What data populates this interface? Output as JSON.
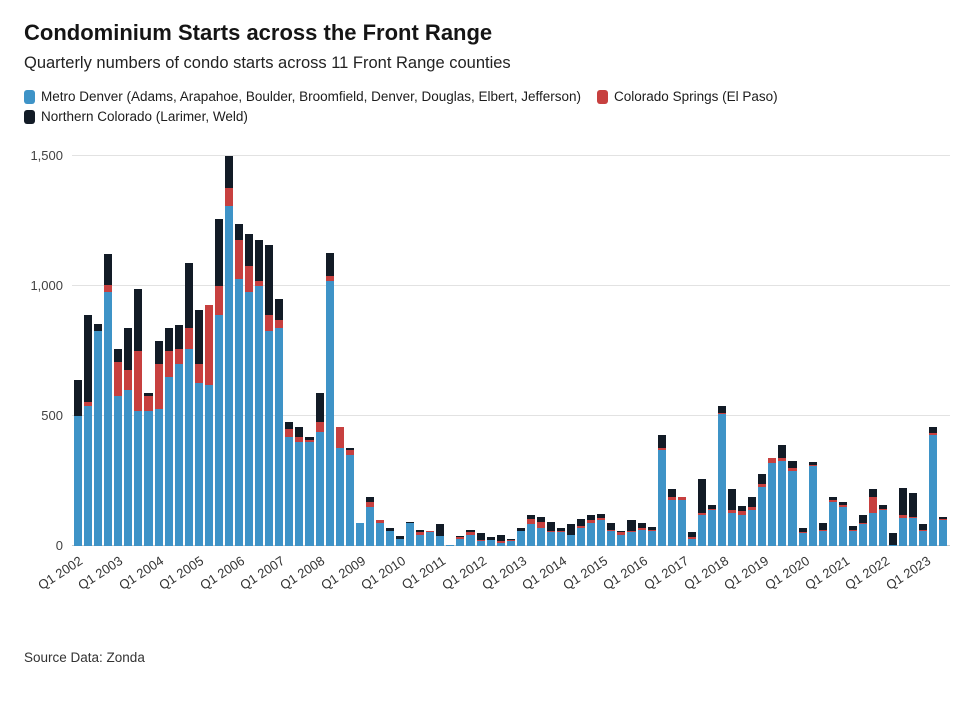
{
  "header": {
    "title": "Condominium Starts across the Front Range",
    "subtitle": "Quarterly numbers of condo starts across 11 Front Range counties"
  },
  "source_note": "Source Data: Zonda",
  "chart_data": {
    "type": "bar",
    "stacked": true,
    "title": "Condominium Starts across the Front Range",
    "xlabel": "",
    "ylabel": "",
    "ylim": [
      0,
      1500
    ],
    "yticks": [
      0,
      500,
      1000,
      1500
    ],
    "ytick_labels": [
      "0",
      "500",
      "1,000",
      "1,500"
    ],
    "grid": "horizontal",
    "legend_position": "top",
    "xtick_every": 4,
    "categories": [
      "Q1 2002",
      "Q2 2002",
      "Q3 2002",
      "Q4 2002",
      "Q1 2003",
      "Q2 2003",
      "Q3 2003",
      "Q4 2003",
      "Q1 2004",
      "Q2 2004",
      "Q3 2004",
      "Q4 2004",
      "Q1 2005",
      "Q2 2005",
      "Q3 2005",
      "Q4 2005",
      "Q1 2006",
      "Q2 2006",
      "Q3 2006",
      "Q4 2006",
      "Q1 2007",
      "Q2 2007",
      "Q3 2007",
      "Q4 2007",
      "Q1 2008",
      "Q2 2008",
      "Q3 2008",
      "Q4 2008",
      "Q1 2009",
      "Q2 2009",
      "Q3 2009",
      "Q4 2009",
      "Q1 2010",
      "Q2 2010",
      "Q3 2010",
      "Q4 2010",
      "Q1 2011",
      "Q2 2011",
      "Q3 2011",
      "Q4 2011",
      "Q1 2012",
      "Q2 2012",
      "Q3 2012",
      "Q4 2012",
      "Q1 2013",
      "Q2 2013",
      "Q3 2013",
      "Q4 2013",
      "Q1 2014",
      "Q2 2014",
      "Q3 2014",
      "Q4 2014",
      "Q1 2015",
      "Q2 2015",
      "Q3 2015",
      "Q4 2015",
      "Q1 2016",
      "Q2 2016",
      "Q3 2016",
      "Q4 2016",
      "Q1 2017",
      "Q2 2017",
      "Q3 2017",
      "Q4 2017",
      "Q1 2018",
      "Q2 2018",
      "Q3 2018",
      "Q4 2018",
      "Q1 2019",
      "Q2 2019",
      "Q3 2019",
      "Q4 2019",
      "Q1 2020",
      "Q2 2020",
      "Q3 2020",
      "Q4 2020",
      "Q1 2021",
      "Q2 2021",
      "Q3 2021",
      "Q4 2021",
      "Q1 2022",
      "Q2 2022",
      "Q3 2022",
      "Q4 2022",
      "Q1 2023",
      "Q2 2023",
      "Q3 2023"
    ],
    "series": [
      {
        "key": "metro-denver",
        "name": "Metro Denver (Adams, Arapahoe, Boulder, Broomfield, Denver, Douglas, Elbert, Jefferson)",
        "color": "#3e93c7",
        "values": [
          500,
          540,
          830,
          980,
          580,
          600,
          520,
          520,
          530,
          650,
          700,
          760,
          630,
          620,
          890,
          1310,
          1030,
          980,
          1000,
          830,
          840,
          420,
          400,
          400,
          440,
          1020,
          380,
          350,
          90,
          150,
          90,
          60,
          30,
          90,
          45,
          55,
          40,
          5,
          30,
          45,
          20,
          25,
          15,
          20,
          60,
          85,
          70,
          55,
          55,
          45,
          70,
          90,
          100,
          60,
          45,
          55,
          65,
          60,
          370,
          180,
          180,
          30,
          120,
          140,
          510,
          130,
          120,
          140,
          230,
          320,
          330,
          290,
          50,
          310,
          60,
          170,
          150,
          60,
          85,
          130,
          140,
          5,
          110,
          110,
          60,
          430,
          100
        ]
      },
      {
        "key": "colorado-springs",
        "name": "Colorado Springs (El Paso)",
        "color": "#c7403f",
        "values": [
          0,
          15,
          0,
          25,
          130,
          80,
          230,
          60,
          170,
          100,
          60,
          80,
          70,
          310,
          110,
          70,
          150,
          100,
          20,
          60,
          30,
          30,
          20,
          10,
          40,
          20,
          80,
          20,
          0,
          20,
          10,
          0,
          0,
          0,
          10,
          5,
          0,
          0,
          5,
          10,
          5,
          0,
          5,
          5,
          0,
          20,
          25,
          5,
          5,
          0,
          10,
          10,
          10,
          5,
          10,
          5,
          5,
          5,
          10,
          10,
          10,
          5,
          10,
          5,
          5,
          10,
          15,
          10,
          10,
          20,
          10,
          10,
          5,
          5,
          5,
          10,
          10,
          5,
          5,
          60,
          5,
          0,
          10,
          5,
          5,
          5,
          5
        ]
      },
      {
        "key": "northern-colorado",
        "name": "Northern Colorado (Larimer, Weld)",
        "color": "#121b26",
        "values": [
          140,
          335,
          25,
          120,
          50,
          160,
          240,
          10,
          90,
          90,
          90,
          250,
          210,
          0,
          260,
          120,
          60,
          120,
          160,
          270,
          80,
          30,
          40,
          10,
          110,
          90,
          0,
          10,
          0,
          20,
          0,
          10,
          10,
          5,
          10,
          0,
          45,
          0,
          5,
          10,
          25,
          10,
          25,
          5,
          10,
          15,
          20,
          35,
          10,
          40,
          25,
          20,
          15,
          25,
          5,
          40,
          20,
          10,
          50,
          30,
          0,
          20,
          130,
          15,
          25,
          80,
          20,
          40,
          40,
          0,
          50,
          30,
          15,
          10,
          25,
          10,
          10,
          15,
          30,
          30,
          15,
          45,
          105,
          90,
          20,
          25,
          10
        ]
      }
    ]
  }
}
